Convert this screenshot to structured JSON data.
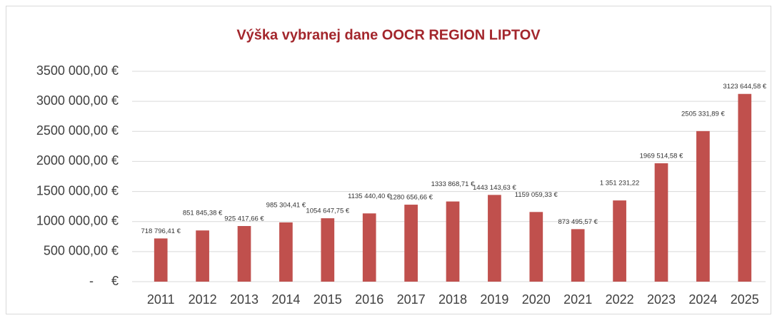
{
  "chart_data": {
    "type": "bar",
    "title": "Výška vybranej dane OOCR REGION LIPTOV",
    "categories": [
      "2011",
      "2012",
      "2013",
      "2014",
      "2015",
      "2016",
      "2017",
      "2018",
      "2019",
      "2020",
      "2021",
      "2022",
      "2023",
      "2024",
      "2025"
    ],
    "values": [
      718796.41,
      851845.38,
      925417.66,
      985304.41,
      1054647.75,
      1135440.4,
      1280656.66,
      1333868.71,
      1443143.63,
      1159059.33,
      873495.57,
      1351231.22,
      1969514.58,
      2505331.89,
      3123644.58
    ],
    "value_labels": [
      "718 796,41 €",
      "851 845,38 €",
      "925 417,66 €",
      "985 304,41 €",
      "1054 647,75 €",
      "1135 440,40 €",
      "1280 656,66 €",
      "1333 868,71 €",
      "1443 143,63 €",
      "1159 059,33 €",
      "873 495,57 €",
      "1 351 231,22",
      "1969 514,58 €",
      "2505 331,89 €",
      "3123 644,58 €"
    ],
    "color": "#c0504d",
    "ylim": [
      0,
      3500000
    ],
    "yticks": [
      {
        "value": 0,
        "label": "-     €"
      },
      {
        "value": 500000,
        "label": "500 000,00 €"
      },
      {
        "value": 1000000,
        "label": "1000 000,00 €"
      },
      {
        "value": 1500000,
        "label": "1500 000,00 €"
      },
      {
        "value": 2000000,
        "label": "2000 000,00 €"
      },
      {
        "value": 2500000,
        "label": "2500 000,00 €"
      },
      {
        "value": 3000000,
        "label": "3000 000,00 €"
      },
      {
        "value": 3500000,
        "label": "3500 000,00 €"
      }
    ],
    "grid": true
  }
}
